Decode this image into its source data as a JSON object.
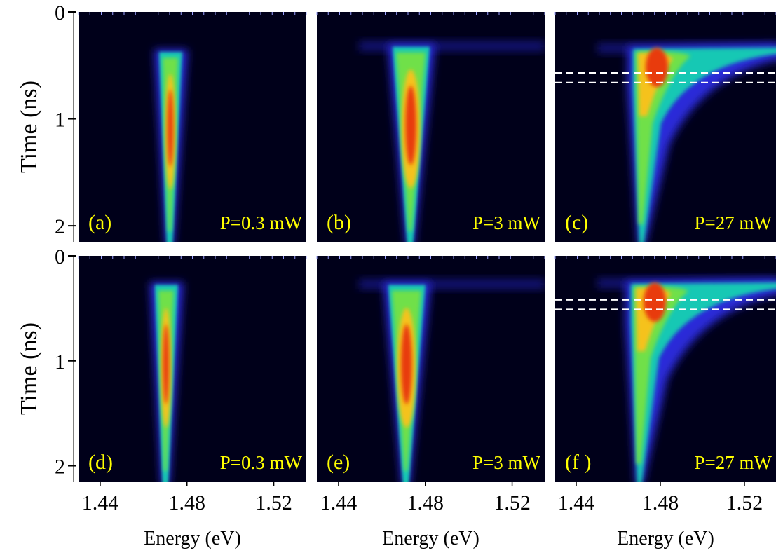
{
  "chart_data": {
    "type": "heatmap",
    "description_of_axes": "shared",
    "x_axis": {
      "label": "Energy (eV)",
      "ticks": [
        "1.44",
        "1.48",
        "1.52"
      ],
      "range": [
        1.43,
        1.535
      ]
    },
    "y_axis": {
      "label": "Time (ns)",
      "ticks": [
        "0",
        "1",
        "2"
      ],
      "range": [
        0,
        2.15
      ],
      "inverted": true
    },
    "colormap": "rainbow",
    "panels": [
      {
        "id": "a",
        "label": "(a)",
        "power": "P=0.3 mW",
        "peak_eV": 1.472,
        "onset_ns": 0.35,
        "dashed_lines_ns": []
      },
      {
        "id": "b",
        "label": "(b)",
        "power": "P=3 mW",
        "peak_eV": 1.473,
        "onset_ns": 0.3,
        "dashed_lines_ns": []
      },
      {
        "id": "c",
        "label": "(c)",
        "power": "P=27 mW",
        "peak_eV": 1.471,
        "onset_ns": 0.32,
        "dashed_lines_ns": [
          0.57,
          0.66
        ]
      },
      {
        "id": "d",
        "label": "(d)",
        "power": "P=0.3 mW",
        "peak_eV": 1.47,
        "onset_ns": 0.25,
        "dashed_lines_ns": []
      },
      {
        "id": "e",
        "label": "(e)",
        "power": "P=3 mW",
        "peak_eV": 1.471,
        "onset_ns": 0.25,
        "dashed_lines_ns": []
      },
      {
        "id": "f",
        "label": "(f )",
        "power": "P=27 mW",
        "peak_eV": 1.47,
        "onset_ns": 0.24,
        "dashed_lines_ns": [
          0.42,
          0.51
        ]
      }
    ]
  }
}
